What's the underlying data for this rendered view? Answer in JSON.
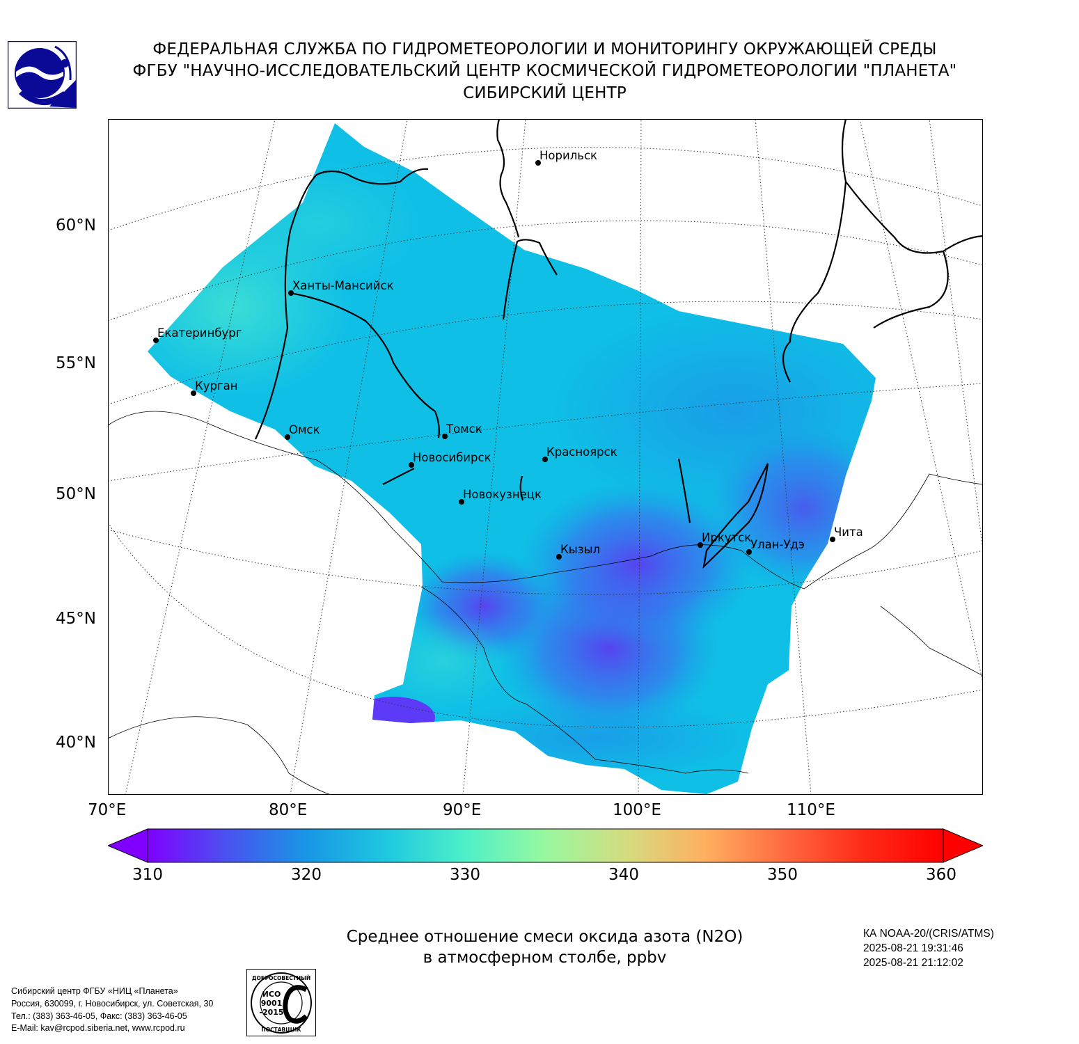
{
  "header": {
    "line1": "ФЕДЕРАЛЬНАЯ СЛУЖБА ПО ГИДРОМЕТЕОРОЛОГИИ И МОНИТОРИНГУ ОКРУЖАЮЩЕЙ СРЕДЫ",
    "line2": "ФГБУ \"НАУЧНО-ИССЛЕДОВАТЕЛЬСКИЙ ЦЕНТР КОСМИЧЕСКОЙ ГИДРОМЕТЕОРОЛОГИИ \"ПЛАНЕТА\"",
    "line3": "СИБИРСКИЙ ЦЕНТР"
  },
  "map": {
    "lat_labels": [
      "60°N",
      "55°N",
      "50°N",
      "45°N",
      "40°N"
    ],
    "lon_labels": [
      "70°E",
      "80°E",
      "90°E",
      "100°E",
      "110°E"
    ],
    "cities": [
      {
        "name": "Норильск"
      },
      {
        "name": "Ханты-Мансийск"
      },
      {
        "name": "Екатеринбург"
      },
      {
        "name": "Курган"
      },
      {
        "name": "Омск"
      },
      {
        "name": "Томск"
      },
      {
        "name": "Новосибирск"
      },
      {
        "name": "Красноярск"
      },
      {
        "name": "Новокузнецк"
      },
      {
        "name": "Кызыл"
      },
      {
        "name": "Иркутск"
      },
      {
        "name": "Улан-Удэ"
      },
      {
        "name": "Чита"
      }
    ]
  },
  "colorbar": {
    "ticks": [
      "310",
      "320",
      "330",
      "340",
      "350",
      "360"
    ],
    "min": 310,
    "max": 360,
    "colors": [
      "#7f00ff",
      "#4a52f0",
      "#1996e6",
      "#1ec8e0",
      "#4ef0c8",
      "#98f8a0",
      "#d4dc80",
      "#ffb060",
      "#ff6a40",
      "#ff2a18",
      "#ff0000"
    ]
  },
  "field": {
    "colors": {
      "low": "#5a3df0",
      "mid": "#1a9ae8",
      "base": "#0fbfe6",
      "high": "#3ee0d4"
    }
  },
  "caption": {
    "line1": "Среднее отношение смеси оксида азота (N2O)",
    "line2": "в атмосферном столбе, ppbv"
  },
  "meta": {
    "satellite": "КА NOAA-20/(CRIS/ATMS)",
    "time1": "2025-08-21 19:31:46",
    "time2": "2025-08-21 21:12:02"
  },
  "footer": {
    "line1": "Сибирский центр ФГБУ «НИЦ «Планета»",
    "line2": "Россия, 630099, г. Новосибирск, ул. Советская, 30",
    "line3": "Тел.: (383) 363-46-05, Факс: (383) 363-46-05",
    "line4": "E-Mail: kav@rcpod.siberia.net, www.rcpod.ru"
  },
  "iso_badge": {
    "top_text": "ДОБРОСОВЕСТНЫЙ",
    "line1": "ИСО",
    "line2": "9001",
    "line3": "-2015",
    "bottom_text": "ПОСТАВЩИК"
  }
}
